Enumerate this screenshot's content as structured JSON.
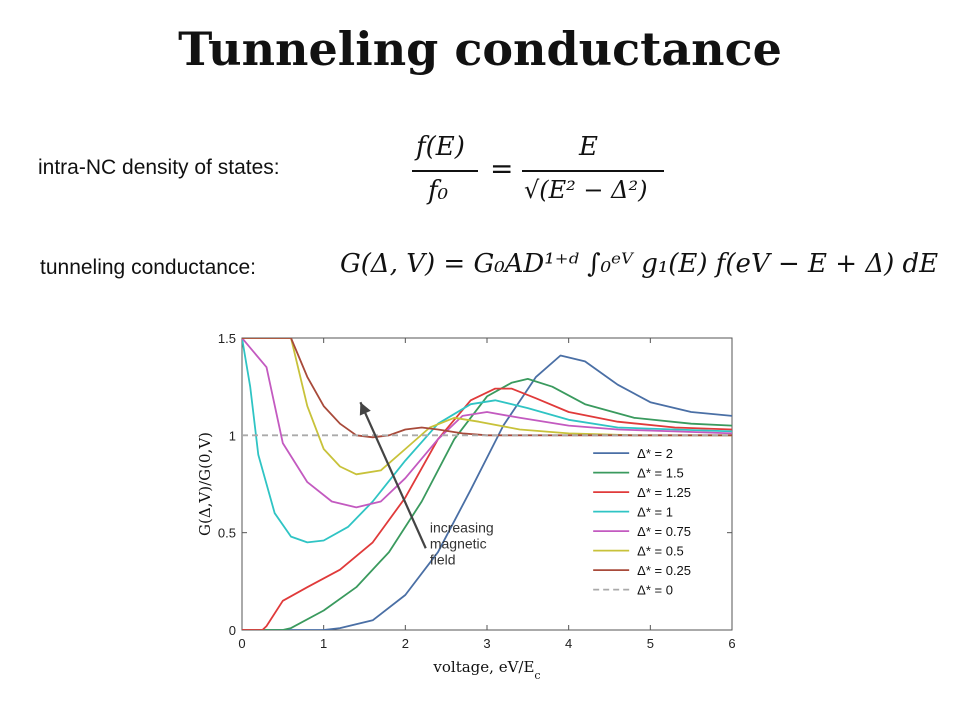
{
  "slide": {
    "title": "Tunneling conductance",
    "dos_label": "intra-NC density of states:",
    "cond_label": "tunneling conductance:"
  },
  "equation1": {
    "lhs_num": "f(E)",
    "lhs_den": "f₀",
    "equals": "=",
    "rhs_num": "E",
    "rhs_den": "√(E² − Δ²)"
  },
  "equation2": {
    "text": "G(Δ, V) = G₀AD¹⁺ᵈ ∫₀ᵉⱽ g₁(E) f(eV − E + Δ) dE"
  },
  "chart_data": {
    "type": "line",
    "xlabel": "voltage, eV/E",
    "xlabel_sub": "c",
    "ylabel": "G(Δ,V)/G(0,V)",
    "xlim": [
      0,
      6
    ],
    "ylim": [
      0,
      1.5
    ],
    "xticks": [
      "0",
      "1",
      "2",
      "3",
      "4",
      "5",
      "6"
    ],
    "yticks": [
      "0",
      "0.5",
      "1",
      "1.5"
    ],
    "legend_position": "lower-right",
    "annotation": [
      "increasing",
      "magnetic",
      "field"
    ],
    "series": [
      {
        "name": "Δ* = 2",
        "color": "#4a6fa5",
        "x": [
          0,
          1.0,
          1.2,
          1.6,
          2.0,
          2.4,
          2.8,
          3.2,
          3.6,
          3.9,
          4.2,
          4.6,
          5.0,
          5.5,
          6.0
        ],
        "y": [
          0,
          0,
          0.01,
          0.05,
          0.18,
          0.4,
          0.72,
          1.05,
          1.3,
          1.41,
          1.38,
          1.26,
          1.17,
          1.12,
          1.1
        ]
      },
      {
        "name": "Δ* = 1.5",
        "color": "#3a9a5e",
        "x": [
          0,
          0.5,
          0.6,
          1.0,
          1.4,
          1.8,
          2.2,
          2.6,
          3.0,
          3.3,
          3.5,
          3.8,
          4.2,
          4.8,
          5.5,
          6.0
        ],
        "y": [
          0,
          0,
          0.01,
          0.1,
          0.22,
          0.4,
          0.66,
          0.98,
          1.2,
          1.27,
          1.29,
          1.25,
          1.16,
          1.09,
          1.06,
          1.05
        ]
      },
      {
        "name": "Δ* = 1.25",
        "color": "#e03a3a",
        "x": [
          0,
          0.25,
          0.3,
          0.5,
          0.8,
          1.2,
          1.6,
          2.0,
          2.4,
          2.8,
          3.1,
          3.3,
          3.6,
          4.0,
          4.6,
          5.3,
          6.0
        ],
        "y": [
          0,
          0,
          0.02,
          0.15,
          0.22,
          0.31,
          0.45,
          0.68,
          0.98,
          1.18,
          1.24,
          1.24,
          1.19,
          1.12,
          1.07,
          1.04,
          1.03
        ]
      },
      {
        "name": "Δ* = 1",
        "color": "#2fc4c4",
        "x": [
          0,
          0.1,
          0.2,
          0.4,
          0.6,
          0.8,
          1.0,
          1.3,
          1.6,
          2.0,
          2.4,
          2.8,
          3.1,
          3.5,
          4.0,
          4.6,
          5.3,
          6.0
        ],
        "y": [
          1.5,
          1.25,
          0.9,
          0.6,
          0.48,
          0.45,
          0.46,
          0.53,
          0.66,
          0.87,
          1.06,
          1.16,
          1.18,
          1.14,
          1.08,
          1.04,
          1.03,
          1.02
        ]
      },
      {
        "name": "Δ* = 0.75",
        "color": "#c35ac0",
        "x": [
          0,
          0.3,
          0.5,
          0.8,
          1.1,
          1.4,
          1.7,
          2.0,
          2.4,
          2.7,
          3.0,
          3.4,
          4.0,
          4.6,
          5.3,
          6.0
        ],
        "y": [
          1.5,
          1.35,
          0.96,
          0.76,
          0.66,
          0.63,
          0.66,
          0.78,
          0.98,
          1.1,
          1.12,
          1.09,
          1.05,
          1.03,
          1.02,
          1.01
        ]
      },
      {
        "name": "Δ* = 0.5",
        "color": "#c8c23a",
        "x": [
          0,
          0.6,
          0.8,
          1.0,
          1.2,
          1.4,
          1.7,
          2.0,
          2.3,
          2.6,
          2.9,
          3.4,
          4.0,
          4.8,
          6.0
        ],
        "y": [
          1.5,
          1.5,
          1.15,
          0.93,
          0.84,
          0.8,
          0.82,
          0.93,
          1.04,
          1.09,
          1.07,
          1.03,
          1.01,
          1.0,
          1.0
        ]
      },
      {
        "name": "Δ* = 0.25",
        "color": "#a84a3a",
        "x": [
          0,
          0.6,
          0.8,
          1.0,
          1.2,
          1.4,
          1.6,
          1.8,
          2.0,
          2.2,
          2.4,
          2.7,
          3.0,
          3.5,
          4.5,
          6.0
        ],
        "y": [
          1.5,
          1.5,
          1.3,
          1.15,
          1.06,
          1.0,
          0.99,
          1.0,
          1.03,
          1.04,
          1.03,
          1.01,
          1.0,
          1.0,
          1.0,
          1.0
        ]
      },
      {
        "name": "Δ* = 0",
        "color": "#aaaaaa",
        "dashed": true,
        "x": [
          0,
          6
        ],
        "y": [
          1,
          1
        ]
      }
    ]
  }
}
